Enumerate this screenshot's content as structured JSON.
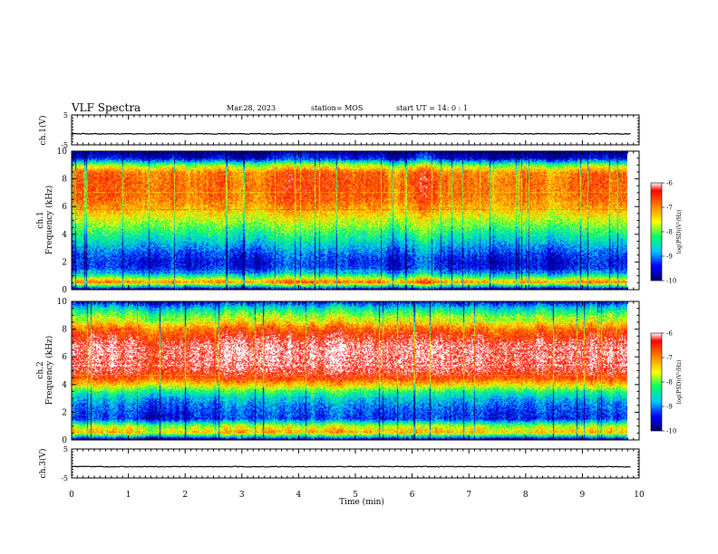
{
  "header": {
    "title": "VLF Spectra",
    "date": "Mar.28, 2023",
    "station": "station= MOS",
    "start_ut": "start  UT =   14: 0  : 1"
  },
  "colors": {
    "colormap": [
      "#00006e",
      "#0000ff",
      "#00c8ff",
      "#00ff64",
      "#ffff00",
      "#ff8c00",
      "#ff0000",
      "#ffffff"
    ]
  },
  "chart_data": [
    {
      "type": "line",
      "panel": "ch1-voltage",
      "ylabel": "ch.1(V)",
      "ylim": [
        -5,
        5
      ],
      "yticks": [
        "5",
        "-5"
      ],
      "xlim": [
        0,
        10
      ],
      "level": -1.3
    },
    {
      "type": "heatmap",
      "panel": "ch1-spectrogram",
      "ylabel": "ch.1\nFrequency (kHz)",
      "ylim": [
        0,
        10
      ],
      "yticks": [
        "0",
        "2",
        "4",
        "6",
        "8",
        "10"
      ],
      "xlim": [
        0,
        9.85
      ],
      "data_end_min": 9.85,
      "colorbar": {
        "label": "log(PSD)(V²/Hz)",
        "range": [
          -10,
          -6
        ],
        "ticks": [
          "-6",
          "-7",
          "-8",
          "-9",
          "-10"
        ]
      },
      "profile_freq_khz": [
        0,
        0.5,
        1,
        1.5,
        2,
        2.5,
        3,
        3.5,
        4,
        4.5,
        5,
        5.5,
        6,
        6.5,
        7,
        7.5,
        8,
        8.5,
        9,
        9.5,
        10
      ],
      "profile_log_psd": [
        -9.7,
        -6.9,
        -8.4,
        -9.3,
        -9.4,
        -9.2,
        -8.9,
        -8.6,
        -8.3,
        -8.0,
        -7.7,
        -7.4,
        -7.1,
        -6.9,
        -6.8,
        -6.8,
        -6.8,
        -6.9,
        -7.8,
        -9.5,
        -9.9
      ]
    },
    {
      "type": "heatmap",
      "panel": "ch2-spectrogram",
      "ylabel": "ch.2\nFrequency (kHz)",
      "ylim": [
        0,
        10
      ],
      "yticks": [
        "0",
        "2",
        "4",
        "6",
        "8",
        "10"
      ],
      "xlim": [
        0,
        9.85
      ],
      "data_end_min": 9.85,
      "colorbar": {
        "label": "log(PSD)(V²/Hz)",
        "range": [
          -10,
          -6
        ],
        "ticks": [
          "-6",
          "-7",
          "-8",
          "-9",
          "-10"
        ]
      },
      "profile_freq_khz": [
        0,
        0.5,
        1,
        1.5,
        2,
        2.5,
        3,
        3.5,
        4,
        4.5,
        5,
        5.5,
        6,
        6.5,
        7,
        7.5,
        8,
        8.5,
        9,
        9.5,
        10
      ],
      "profile_log_psd": [
        -9.7,
        -7.2,
        -7.8,
        -9.3,
        -9.2,
        -9.0,
        -8.7,
        -8.2,
        -7.3,
        -6.6,
        -6.3,
        -6.2,
        -6.1,
        -6.1,
        -6.2,
        -6.5,
        -6.8,
        -7.4,
        -7.9,
        -8.5,
        -9.4
      ]
    },
    {
      "type": "line",
      "panel": "ch3-voltage",
      "ylabel": "ch.3(V)",
      "ylim": [
        -5,
        5
      ],
      "yticks": [
        "5",
        "-5"
      ],
      "xlim": [
        0,
        10
      ],
      "level": -1.1
    }
  ],
  "xaxis": {
    "label": "Time  (min)",
    "ticks": [
      "0",
      "1",
      "2",
      "3",
      "4",
      "5",
      "6",
      "7",
      "8",
      "9",
      "10"
    ]
  }
}
